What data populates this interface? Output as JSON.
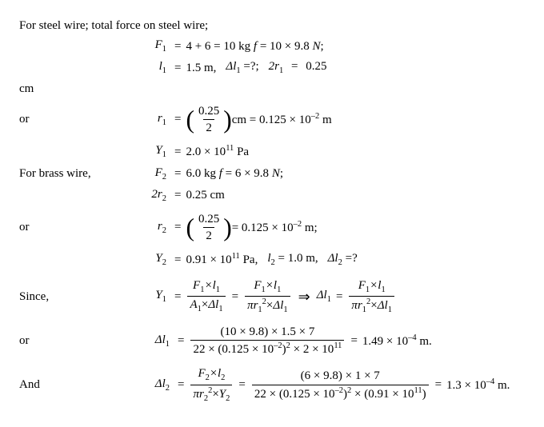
{
  "line1": "For steel wire; total force on steel wire;",
  "F1_sym": "F",
  "sub1": "1",
  "F1_rhs_a": "4 + 6 = 10 kg ",
  "F1_rhs_b": "f",
  "F1_rhs_c": " = 10 × 9.8 ",
  "F1_rhs_d": "N",
  "F1_rhs_e": ";",
  "l1_sym": "l",
  "l1_val": "1.5  m,",
  "dl1q": "Δl",
  "dl1q_after": "=?;",
  "tr1_sym": "2r",
  "tr1_val": "0.25",
  "cm": "cm",
  "or": "or",
  "r1_sym": "r",
  "frac_025": "0.25",
  "frac_2": "2",
  "r1_after_a": "cm = 0.125 × 10",
  "exp_m2": "–2",
  "r1_after_b": " m",
  "Y1_sym": "Y",
  "Y1_val_a": "2.0 × 10",
  "exp_11": "11",
  "Pa": " Pa",
  "brass": "For brass wire,",
  "F2_sym": "F",
  "sub2": "2",
  "F2_rhs_a": "6.0 kg ",
  "F2_rhs_c": " = 6 × 9.8 ",
  "tr2_val": "0.25 cm",
  "r2_after_a": " = 0.125 × 10",
  "r2_after_b": "  m;",
  "Y2_val_a": "0.91 × 10",
  "Y2_after": " Pa,",
  "l2_sym": "l",
  "l2_val": " = 1.0 m,",
  "dl2q_after": " =?",
  "since": "Since,",
  "and": "And",
  "Fl_num_a": "F",
  "Fl_num_b": "×l",
  "A": "A",
  "x": "×",
  "dl": "Δl",
  "pi": "π",
  "r": "r",
  "sq": "2",
  "arr": "⇒",
  "num1": "(10 × 9.8) × 1.5 × 7",
  "den1_a": "22 × (0.125 × 10",
  "den1_b": ")",
  "den1_c": " × 2 × 10",
  "res1_a": "1.49 × 10",
  "exp_m4": "–4",
  "res_m": " m.",
  "num2": "(6 × 9.8) × 1 × 7",
  "den2_c": " × (0.91 × 10",
  "den2_d": ")",
  "res2_a": "1.3 × 10",
  "eq": "="
}
